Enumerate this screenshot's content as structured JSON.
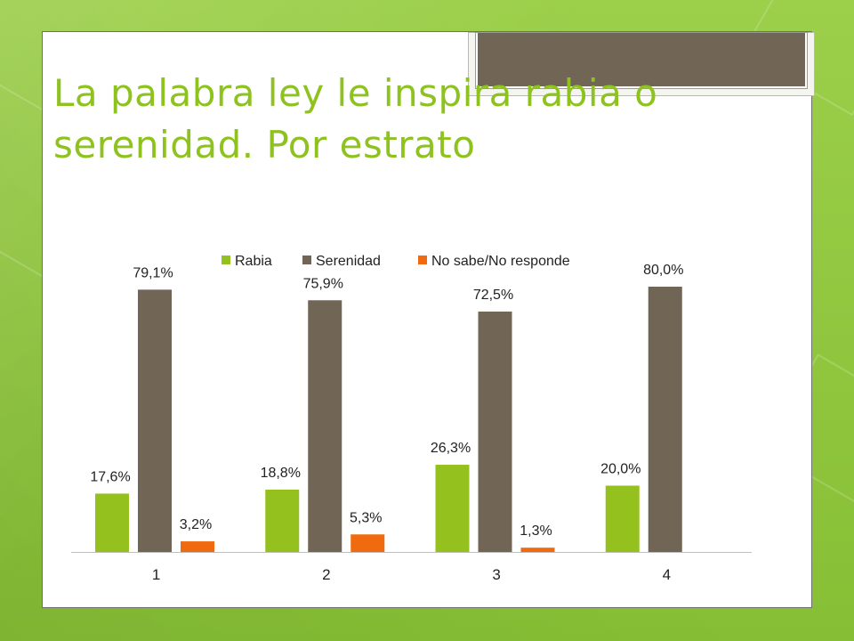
{
  "title": "La palabra ley le inspira rabia o serenidad. Por estrato",
  "title_line1": "La palabra ley le inspira rabia o",
  "title_line2": "serenidad. Por estrato",
  "colors": {
    "background": "#8fc63c",
    "title": "#8dc21f",
    "rabia": "#95c11f",
    "serenidad": "#716556",
    "nosabe": "#f06b0f"
  },
  "chart_data": {
    "type": "bar",
    "categories": [
      "1",
      "2",
      "3",
      "4"
    ],
    "series": [
      {
        "name": "Rabia",
        "values": [
          17.6,
          18.8,
          26.3,
          20.0
        ],
        "labels": [
          "17,6%",
          "18,8%",
          "26,3%",
          "20,0%"
        ]
      },
      {
        "name": "Serenidad",
        "values": [
          79.1,
          75.9,
          72.5,
          80.0
        ],
        "labels": [
          "79,1%",
          "75,9%",
          "72,5%",
          "80,0%"
        ]
      },
      {
        "name": "No sabe/No responde",
        "values": [
          3.2,
          5.3,
          1.3,
          null
        ],
        "labels": [
          "3,2%",
          "5,3%",
          "1,3%",
          null
        ]
      }
    ],
    "ylim": [
      0,
      100
    ],
    "legend_position": "top",
    "grid": false
  }
}
